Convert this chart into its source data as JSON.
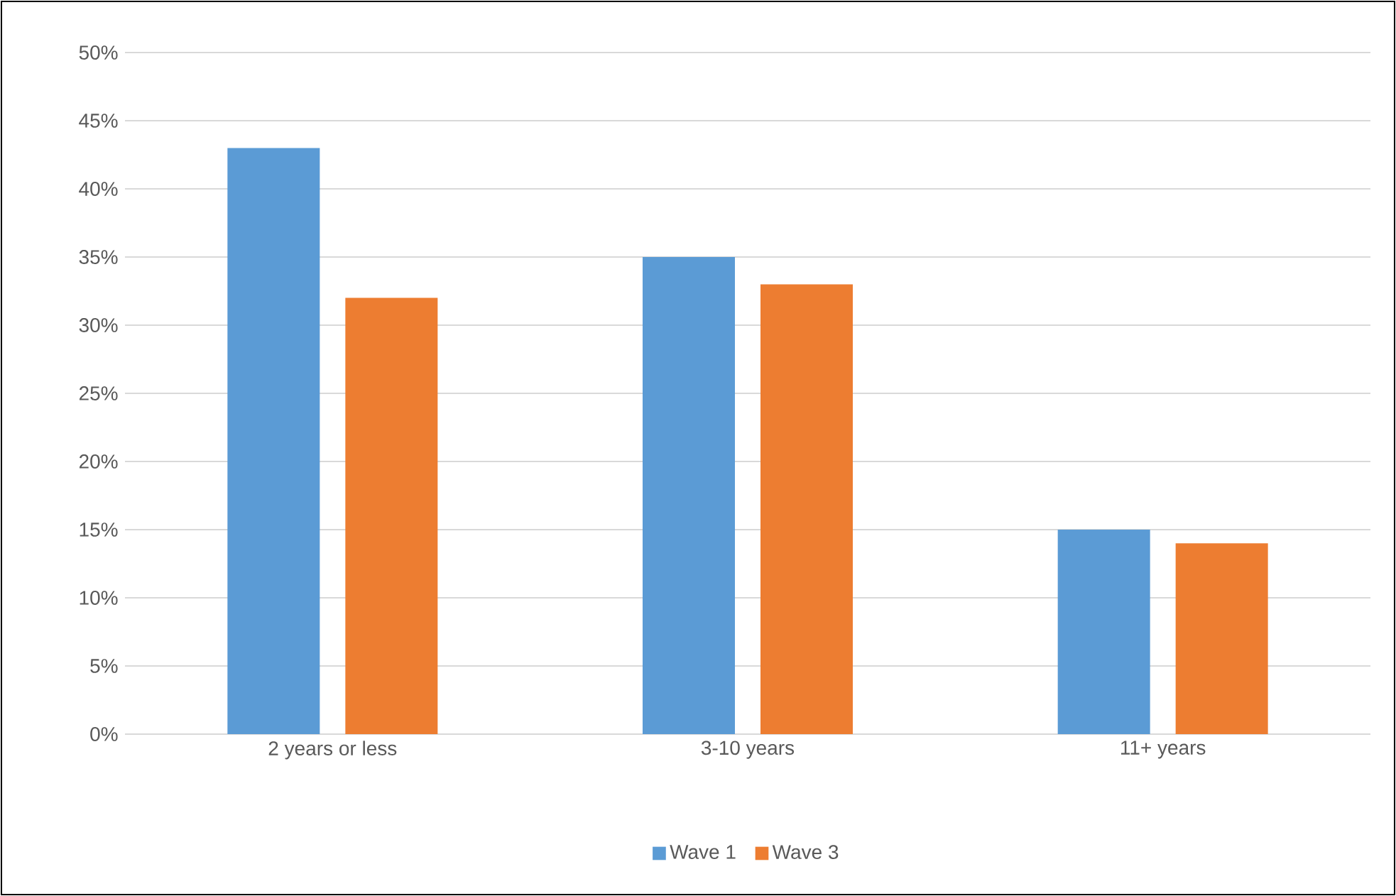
{
  "chart_data": {
    "type": "bar",
    "categories": [
      "2 years or less",
      "3-10 years",
      "11+ years"
    ],
    "series": [
      {
        "name": "Wave 1",
        "color": "#5b9bd5",
        "values": [
          43,
          35,
          15
        ]
      },
      {
        "name": "Wave 3",
        "color": "#ed7d31",
        "values": [
          32,
          33,
          14
        ]
      }
    ],
    "ylim": [
      0,
      50
    ],
    "yticks": [
      {
        "value": 0,
        "label": "0%"
      },
      {
        "value": 5,
        "label": "5%"
      },
      {
        "value": 10,
        "label": "10%"
      },
      {
        "value": 15,
        "label": "15%"
      },
      {
        "value": 20,
        "label": "20%"
      },
      {
        "value": 25,
        "label": "25%"
      },
      {
        "value": 30,
        "label": "30%"
      },
      {
        "value": 35,
        "label": "35%"
      },
      {
        "value": 40,
        "label": "40%"
      },
      {
        "value": 45,
        "label": "45%"
      },
      {
        "value": 50,
        "label": "50%"
      }
    ],
    "grid": "y",
    "legend": "bottom"
  }
}
